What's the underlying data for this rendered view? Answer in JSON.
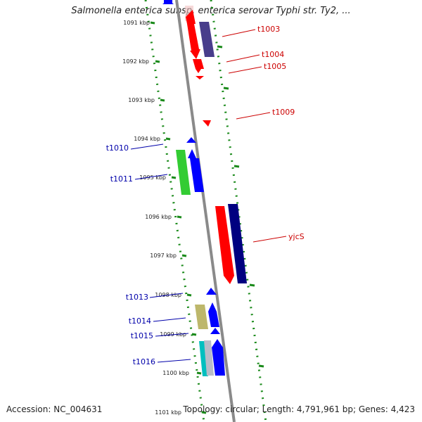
{
  "title": "Salmonella enterica subsp. enterica serovar Typhi str. Ty2, ...",
  "accession": "Accession: NC_004631",
  "summary": "Topology: circular; Length: 4,791,961 bp; Genes: 4,423",
  "ticks": [
    "1091 kbp",
    "1092 kbp",
    "1093 kbp",
    "1094 kbp",
    "1095 kbp",
    "1096 kbp",
    "1097 kbp",
    "1098 kbp",
    "1099 kbp",
    "1100 kbp",
    "1101 kbp"
  ],
  "labels_right": [
    "t1003",
    "t1004",
    "t1005",
    "t1009",
    "yjcS"
  ],
  "labels_left": [
    "t1010",
    "t1011",
    "t1013",
    "t1014",
    "t1015",
    "t1016"
  ],
  "colors": {
    "axis": "#8a8a8a",
    "track_dots": "#1a8a1a",
    "label_right": "#cc0000",
    "label_left": "#0000aa",
    "red": "#ff0000",
    "blue": "#0000ff",
    "navy": "#000080",
    "slate": "#483d8b",
    "green": "#33cc33",
    "olive": "#bdb76b",
    "cyan": "#00bfbf",
    "grey": "#b8bcc8"
  }
}
